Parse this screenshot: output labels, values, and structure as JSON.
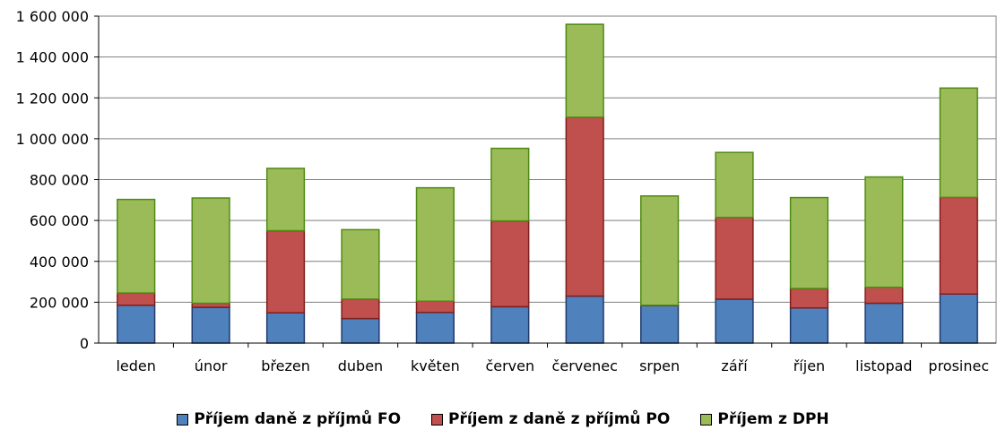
{
  "chart_data": {
    "type": "bar",
    "stacked": true,
    "categories": [
      "leden",
      "únor",
      "březen",
      "duben",
      "květen",
      "červen",
      "červenec",
      "srpen",
      "září",
      "říjen",
      "listopad",
      "prosinec"
    ],
    "series": [
      {
        "name": "Příjem daně z příjmů FO",
        "color": "#4F81BD",
        "edge": "#1F3B6E",
        "values": [
          185000,
          175000,
          148000,
          120000,
          150000,
          178000,
          230000,
          183000,
          215000,
          172000,
          195000,
          240000
        ]
      },
      {
        "name": "Příjem z daně z příjmů PO",
        "color": "#C0504D",
        "edge": "#7F1F1D",
        "values": [
          60000,
          20000,
          402000,
          95000,
          55000,
          420000,
          875000,
          2000,
          400000,
          95000,
          78000,
          473000
        ]
      },
      {
        "name": "Příjem z DPH",
        "color": "#9BBB59",
        "edge": "#4E8A12",
        "values": [
          458000,
          515000,
          305000,
          340000,
          555000,
          355000,
          455000,
          535000,
          318000,
          445000,
          540000,
          535000
        ]
      }
    ],
    "yticks": [
      "0",
      "200 000",
      "400 000",
      "600 000",
      "800 000",
      "1 000 000",
      "1 200 000",
      "1 400 000",
      "1 600 000"
    ],
    "ylim": [
      0,
      1600000
    ],
    "grid": true,
    "legend_position": "bottom",
    "title": "",
    "xlabel": "",
    "ylabel": ""
  }
}
